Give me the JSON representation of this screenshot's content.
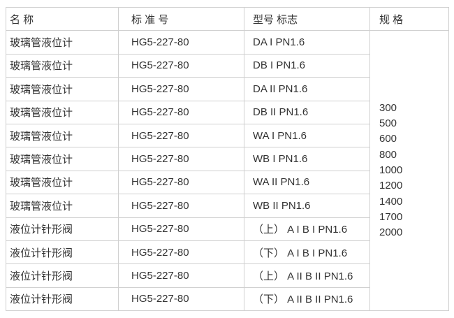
{
  "table": {
    "headers": [
      {
        "label": "名 称"
      },
      {
        "label": "标 准 号"
      },
      {
        "label": "型号 标志"
      },
      {
        "label": "规 格"
      }
    ],
    "rows": [
      {
        "name": "玻璃管液位计",
        "standard": "HG5-227-80",
        "model": "DA I PN1.6"
      },
      {
        "name": "玻璃管液位计",
        "standard": "HG5-227-80",
        "model": "DB I PN1.6"
      },
      {
        "name": "玻璃管液位计",
        "standard": "HG5-227-80",
        "model": "DA II PN1.6"
      },
      {
        "name": "玻璃管液位计",
        "standard": "HG5-227-80",
        "model": "DB II PN1.6"
      },
      {
        "name": "玻璃管液位计",
        "standard": "HG5-227-80",
        "model": "WA I PN1.6"
      },
      {
        "name": "玻璃管液位计",
        "standard": "HG5-227-80",
        "model": "WB I PN1.6"
      },
      {
        "name": "玻璃管液位计",
        "standard": "HG5-227-80",
        "model": "WA II PN1.6"
      },
      {
        "name": "玻璃管液位计",
        "standard": "HG5-227-80",
        "model": "WB II PN1.6"
      },
      {
        "name": "液位计针形阀",
        "standard": "HG5-227-80",
        "model": "（上） A I B I PN1.6"
      },
      {
        "name": "液位计针形阀",
        "standard": "HG5-227-80",
        "model": "（下） A I B I PN1.6"
      },
      {
        "name": "液位计针形阀",
        "standard": "HG5-227-80",
        "model": "（上） A II B II PN1.6"
      },
      {
        "name": "液位计针形阀",
        "standard": "HG5-227-80",
        "model": "（下） A II B II PN1.6"
      }
    ],
    "specs": [
      "300",
      "500",
      "600",
      "800",
      "1000",
      "1200",
      "1400",
      "1700",
      "2000"
    ]
  },
  "colors": {
    "text": "#333333",
    "border": "#cfcfcf",
    "background": "#ffffff"
  }
}
